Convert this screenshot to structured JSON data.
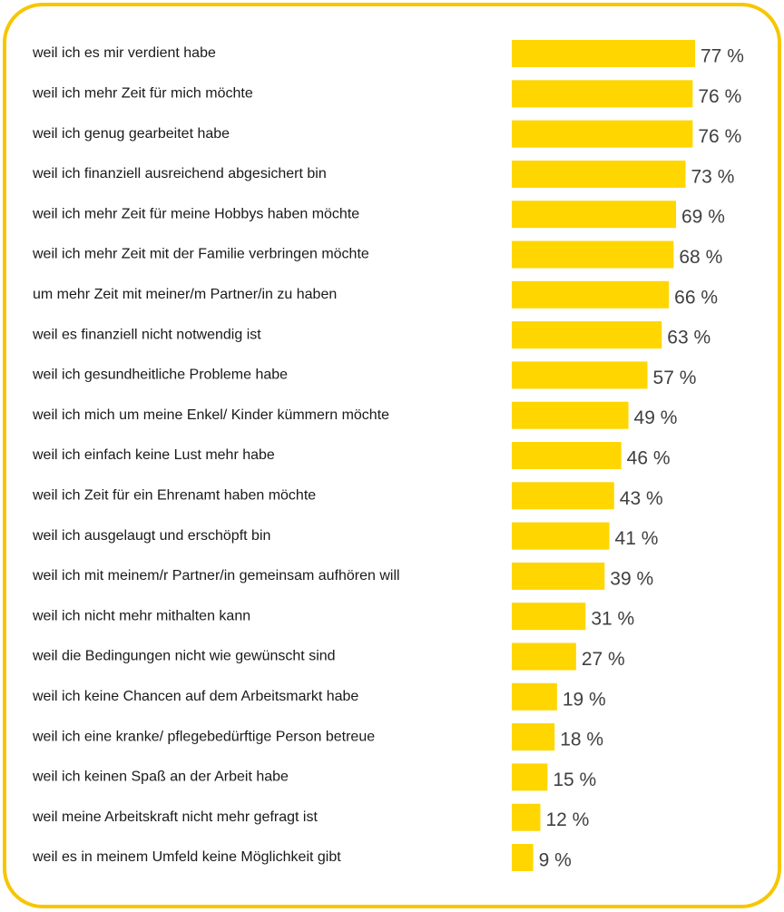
{
  "chart_data": {
    "type": "bar",
    "orientation": "horizontal",
    "color": "#FFD600",
    "border_color": "#F7C600",
    "categories": [
      "weil ich es mir verdient habe",
      "weil ich mehr Zeit für mich möchte",
      "weil ich genug gearbeitet habe",
      "weil ich finanziell ausreichend abgesichert bin",
      "weil ich mehr Zeit für meine Hobbys haben möchte",
      "weil ich mehr Zeit mit der Familie verbringen möchte",
      "um mehr Zeit mit meiner/m Partner/in zu haben",
      "weil es finanziell nicht notwendig ist",
      "weil ich gesundheitliche Probleme habe",
      "weil ich mich um meine Enkel/ Kinder kümmern möchte",
      "weil ich einfach keine Lust mehr habe",
      "weil ich Zeit für ein Ehrenamt haben möchte",
      "weil ich ausgelaugt und erschöpft bin",
      "weil ich mit meinem/r Partner/in gemeinsam aufhören will",
      "weil ich nicht mehr mithalten kann",
      "weil die Bedingungen nicht wie gewünscht sind",
      "weil ich keine Chancen auf dem Arbeitsmarkt habe",
      "weil ich eine kranke/ pflegebedürftige Person betreue",
      "weil ich keinen Spaß an der Arbeit habe",
      "weil meine Arbeitskraft nicht mehr gefragt ist",
      "weil es in meinem Umfeld keine Möglichkeit gibt"
    ],
    "values": [
      77,
      76,
      76,
      73,
      69,
      68,
      66,
      63,
      57,
      49,
      46,
      43,
      41,
      39,
      31,
      27,
      19,
      18,
      15,
      12,
      9
    ],
    "value_labels": [
      "77 %",
      "76 %",
      "76 %",
      "73 %",
      "69 %",
      "68 %",
      "66 %",
      "63 %",
      "57 %",
      "49 %",
      "46 %",
      "43 %",
      "41 %",
      "39 %",
      "31 %",
      "27 %",
      "19 %",
      "18 %",
      "15 %",
      "12 %",
      "9 %"
    ]
  }
}
